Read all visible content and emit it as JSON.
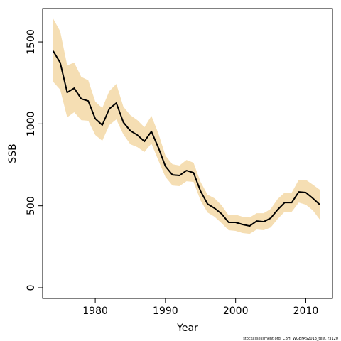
{
  "chart_data": {
    "type": "line",
    "x_label": "Year",
    "y_label": "SSB",
    "footer": "stockassessment.org, CBH: WGBFAS2013_test, r3120",
    "x": [
      1974,
      1975,
      1976,
      1977,
      1978,
      1979,
      1980,
      1981,
      1982,
      1983,
      1984,
      1985,
      1986,
      1987,
      1988,
      1989,
      1990,
      1991,
      1992,
      1993,
      1994,
      1995,
      1996,
      1997,
      1998,
      1999,
      2000,
      2001,
      2002,
      2003,
      2004,
      2005,
      2006,
      2007,
      2008,
      2009,
      2010,
      2011,
      2012
    ],
    "series": [
      {
        "color": "#000000",
        "values": [
          1445,
          1374,
          1192,
          1218,
          1153,
          1140,
          1032,
          993,
          1092,
          1127,
          1010,
          958,
          932,
          893,
          954,
          854,
          741,
          689,
          685,
          715,
          702,
          590,
          511,
          485,
          451,
          399,
          399,
          386,
          377,
          407,
          403,
          425,
          477,
          520,
          520,
          585,
          581,
          546,
          507
        ]
      }
    ],
    "band": {
      "color": "#f5deb3",
      "upper": [
        1643,
        1565,
        1357,
        1374,
        1287,
        1266,
        1136,
        1097,
        1200,
        1244,
        1105,
        1053,
        1023,
        980,
        1049,
        941,
        806,
        754,
        746,
        780,
        763,
        646,
        568,
        546,
        503,
        442,
        446,
        433,
        429,
        455,
        455,
        481,
        542,
        581,
        581,
        659,
        659,
        629,
        598
      ],
      "lower": [
        1257,
        1209,
        1040,
        1071,
        1023,
        1019,
        932,
        897,
        993,
        1027,
        936,
        876,
        858,
        828,
        880,
        776,
        676,
        624,
        620,
        650,
        646,
        533,
        459,
        433,
        394,
        351,
        347,
        334,
        329,
        355,
        351,
        368,
        420,
        464,
        464,
        520,
        507,
        472,
        416
      ]
    },
    "xlim": [
      1972.5,
      2013.8
    ],
    "ylim": [
      -65,
      1704
    ],
    "xticks": [
      1980,
      1990,
      2000,
      2010
    ],
    "yticks": [
      0,
      500,
      1000,
      1500
    ]
  }
}
